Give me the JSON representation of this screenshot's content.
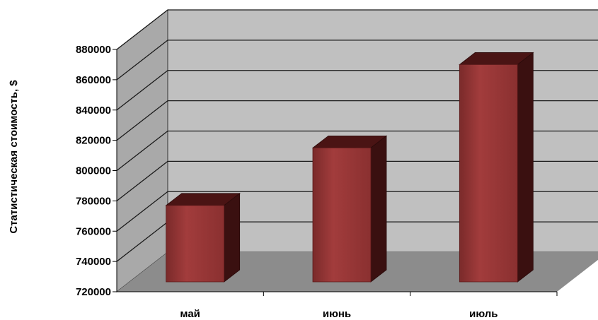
{
  "chart_data": {
    "type": "bar",
    "title": "",
    "xlabel": "",
    "ylabel": "Статистическая стоимость, $",
    "categories": [
      "май",
      "июнь",
      "июль"
    ],
    "values": [
      777000,
      815000,
      870000
    ],
    "ylim": [
      720000,
      880000
    ],
    "yticks": [
      "720000",
      "740000",
      "760000",
      "780000",
      "800000",
      "820000",
      "840000",
      "860000",
      "880000"
    ],
    "grid": true,
    "legend": "none",
    "style": "3d-column",
    "colors": {
      "bar_front": "#913535",
      "bar_side": "#3a1010",
      "bar_top": "#4a1414",
      "back_wall": "#c0c0c0",
      "side_wall": "#a9a9a9",
      "floor": "#8c8c8c",
      "gridline": "#1a1a1a"
    }
  }
}
